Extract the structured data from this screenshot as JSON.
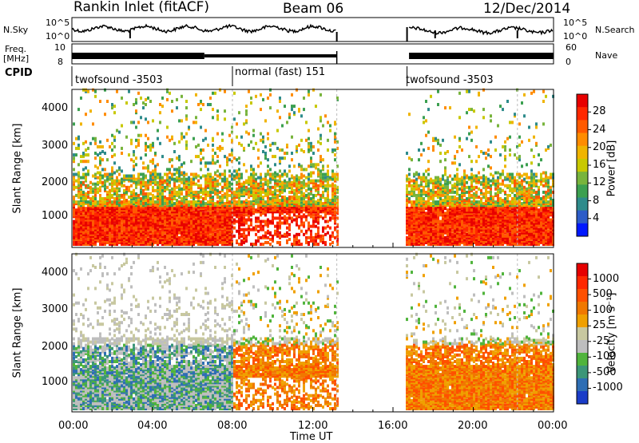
{
  "header": {
    "title": "Rankin Inlet (fitACF)",
    "beam": "Beam 06",
    "date": "12/Dec/2014"
  },
  "noise_panel": {
    "left_label": "N.Sky",
    "right_label": "N.Search",
    "ticks": [
      "10^5",
      "10^0"
    ]
  },
  "freq_panel": {
    "left_label_1": "Freq.",
    "left_label_2": "[MHz]",
    "right_label": "Nave",
    "left_ticks": [
      "10",
      "8"
    ],
    "right_ticks": [
      "60",
      "0"
    ]
  },
  "cpid": {
    "label": "CPID",
    "segments": [
      {
        "name": "twofsound -3503",
        "start_hour": 0
      },
      {
        "name": "normal (fast) 151",
        "start_hour": 8.0
      },
      {
        "name": "twofsound -3503",
        "start_hour": 16.7
      }
    ]
  },
  "chart_data": [
    {
      "type": "heatmap",
      "title": "Power",
      "ylabel": "Slant Range [km]",
      "xlabel": "",
      "x_range_hours": [
        0,
        24
      ],
      "ylim": [
        180,
        4560
      ],
      "yticks": [
        "1000",
        "2000",
        "3000",
        "4000"
      ],
      "colorbar_label": "Power [dB]",
      "colorbar_ticks": [
        "28",
        "24",
        "20",
        "16",
        "12",
        "8",
        "4"
      ],
      "colorbar_colors": [
        "#0018ff",
        "#2d5cc8",
        "#2e8b8b",
        "#3ca050",
        "#78b43c",
        "#c8c800",
        "#f0b400",
        "#ff8c00",
        "#ff5a00",
        "#ff2800",
        "#e80000"
      ],
      "data_gap_hours": [
        13.2,
        16.6
      ]
    },
    {
      "type": "heatmap",
      "title": "Velocity",
      "ylabel": "Slant Range [km]",
      "xlabel": "Time UT",
      "x_range_hours": [
        0,
        24
      ],
      "xticks": [
        "00:00",
        "04:00",
        "08:00",
        "12:00",
        "16:00",
        "20:00",
        "00:00"
      ],
      "ylim": [
        180,
        4560
      ],
      "yticks": [
        "1000",
        "2000",
        "3000",
        "4000"
      ],
      "colorbar_label": "Velocity [m s⁻¹]",
      "colorbar_ticks": [
        "1000",
        "500",
        "100",
        "25",
        "-25",
        "-100",
        "-500",
        "-1000"
      ],
      "colorbar_colors": [
        "#1a3cc8",
        "#2e6eb4",
        "#3c9678",
        "#50b43c",
        "#bebebe",
        "#c8c8a0",
        "#f0a000",
        "#f07800",
        "#ff5000",
        "#ff2800",
        "#e60000"
      ],
      "data_gap_hours": [
        13.2,
        16.6
      ]
    }
  ]
}
